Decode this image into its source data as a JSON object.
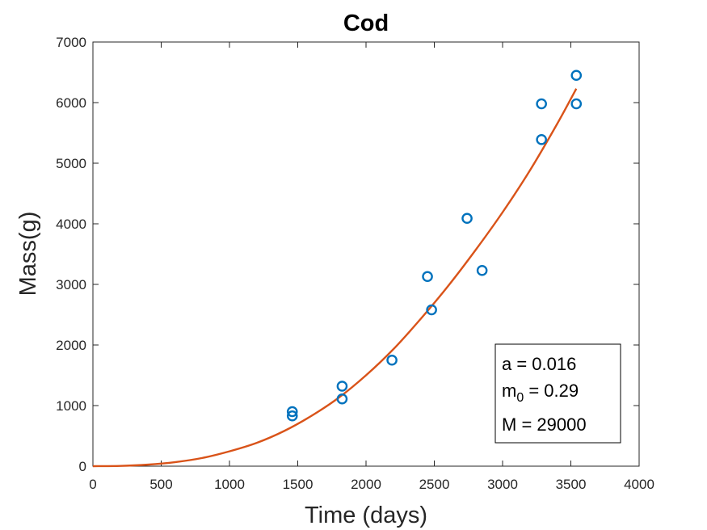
{
  "chart_data": {
    "type": "scatter",
    "title": "Cod",
    "xlabel": "Time (days)",
    "ylabel": "Mass(g)",
    "xlim": [
      0,
      4000
    ],
    "ylim": [
      0,
      7000
    ],
    "xticks": [
      0,
      500,
      1000,
      1500,
      2000,
      2500,
      3000,
      3500,
      4000
    ],
    "yticks": [
      0,
      1000,
      2000,
      3000,
      4000,
      5000,
      6000,
      7000
    ],
    "grid": false,
    "series": [
      {
        "type": "scatter",
        "marker": "circle",
        "color": "#0072BD",
        "x": [
          1460,
          1460,
          1825,
          1825,
          2190,
          2450,
          2480,
          2740,
          2850,
          3285,
          3285,
          3540,
          3540
        ],
        "y": [
          900,
          830,
          1320,
          1110,
          1750,
          3130,
          2580,
          4090,
          3230,
          5980,
          5390,
          6450,
          5980
        ]
      },
      {
        "type": "line",
        "color": "#D95319",
        "x": [
          0,
          200,
          400,
          600,
          800,
          1000,
          1200,
          1400,
          1600,
          1800,
          2000,
          2200,
          2400,
          2600,
          2800,
          3000,
          3200,
          3400,
          3540
        ],
        "y": [
          0,
          4,
          25,
          66,
          135,
          245,
          385,
          580,
          830,
          1130,
          1500,
          1930,
          2430,
          2970,
          3560,
          4190,
          4880,
          5650,
          6230
        ]
      }
    ],
    "annotation": {
      "line1": "a = 0.016",
      "line2_main": "m",
      "line2_sub": "0",
      "line2_rest": " = 0.29",
      "line3": "M = 29000"
    }
  }
}
